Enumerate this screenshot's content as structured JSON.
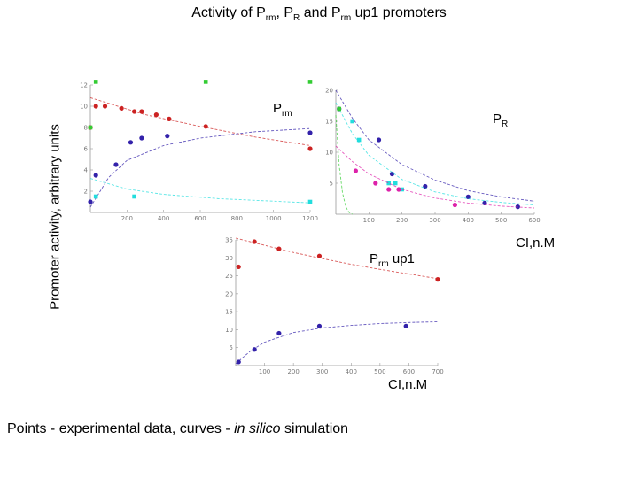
{
  "title": {
    "part1": "Activity of P",
    "sub1": "rm",
    "part2": ", P",
    "sub2": "R",
    "part3": " and P",
    "sub3": "rm",
    "part4": " up1 promoters"
  },
  "ylabel": "Promoter activity, arbitrary units",
  "panel_labels": {
    "prm": {
      "p": "P",
      "sub": "rm"
    },
    "pr": {
      "p": "P",
      "sub": "R"
    },
    "prmup1": {
      "p": "P",
      "sub": "rm",
      "suffix": " up1"
    }
  },
  "xunit_right": "CI,n.M",
  "xunit_bottom": "CI,n.M",
  "footer": {
    "part1": "Points -  experimental data, curves - ",
    "italic": "in silico",
    "part2": " simulation"
  },
  "colors": {
    "red": "#cc2222",
    "blue": "#3322aa",
    "cyan": "#22dddd",
    "magenta": "#dd22aa",
    "green": "#33cc33",
    "purple": "#8833aa"
  },
  "chart_data": [
    {
      "type": "scatter",
      "title": "Prm",
      "xlim": [
        0,
        1200
      ],
      "ylim": [
        0,
        12
      ],
      "x_ticks": [
        "200",
        "400",
        "600",
        "800",
        "1000",
        "1200"
      ],
      "y_ticks": [
        "2",
        "4",
        "6",
        "8",
        "10",
        "12"
      ],
      "series": [
        {
          "name": "red",
          "color": "#cc2222",
          "x": [
            0,
            30,
            80,
            170,
            240,
            280,
            360,
            430,
            630,
            1200
          ],
          "y": [
            8,
            10,
            10,
            9.8,
            9.5,
            9.5,
            9.2,
            8.8,
            8.1,
            6
          ],
          "curve_x": [
            0,
            300,
            600,
            900,
            1200
          ],
          "curve_y": [
            10.8,
            9.2,
            8.1,
            7.1,
            6.3
          ]
        },
        {
          "name": "blue",
          "color": "#3322aa",
          "x": [
            0,
            30,
            140,
            220,
            280,
            420,
            1200
          ],
          "y": [
            1,
            3.5,
            4.5,
            6.6,
            7,
            7.2,
            7.5
          ],
          "curve_x": [
            0,
            100,
            200,
            400,
            600,
            900,
            1200
          ],
          "curve_y": [
            0.5,
            3.3,
            4.9,
            6.3,
            7,
            7.6,
            7.9
          ]
        },
        {
          "name": "cyan",
          "color": "#22dddd",
          "x": [
            30,
            240,
            1200
          ],
          "y": [
            1.5,
            1.5,
            1
          ],
          "curve_x": [
            0,
            200,
            400,
            700,
            1200
          ],
          "curve_y": [
            3.2,
            2.2,
            1.7,
            1.3,
            0.9
          ]
        },
        {
          "name": "green",
          "color": "#33cc33",
          "x": [
            0,
            30,
            630,
            1200
          ],
          "y": [
            8,
            12.3,
            12.3,
            12.3
          ]
        }
      ]
    },
    {
      "type": "scatter",
      "title": "PR",
      "xlim": [
        0,
        600
      ],
      "ylim": [
        0,
        20
      ],
      "x_ticks": [
        "100",
        "200",
        "300",
        "400",
        "500",
        "600"
      ],
      "y_ticks": [
        "5",
        "10",
        "15",
        "20"
      ],
      "series": [
        {
          "name": "blue",
          "color": "#3322aa",
          "x": [
            10,
            130,
            170,
            270,
            400,
            450,
            550
          ],
          "y": [
            17,
            12,
            6.5,
            4.5,
            2.8,
            1.8,
            1.2
          ],
          "curve_x": [
            0,
            50,
            100,
            200,
            300,
            400,
            500,
            600
          ],
          "curve_y": [
            20,
            15.5,
            12,
            8,
            5.5,
            3.8,
            2.8,
            2.1
          ]
        },
        {
          "name": "cyan",
          "color": "#22dddd",
          "x": [
            50,
            70,
            160,
            180,
            200
          ],
          "y": [
            15,
            12,
            5,
            5,
            4
          ],
          "curve_x": [
            0,
            50,
            100,
            200,
            300,
            400,
            500,
            600
          ],
          "curve_y": [
            18,
            13,
            9.5,
            5.6,
            3.6,
            2.5,
            1.9,
            1.5
          ]
        },
        {
          "name": "magenta",
          "color": "#dd22aa",
          "x": [
            60,
            120,
            160,
            190,
            360
          ],
          "y": [
            7,
            5,
            4,
            4,
            1.5
          ],
          "curve_x": [
            0,
            50,
            100,
            200,
            300,
            400,
            500,
            600
          ],
          "curve_y": [
            11,
            8.5,
            6.5,
            4,
            2.6,
            1.8,
            1.3,
            1
          ]
        },
        {
          "name": "green",
          "color": "#33cc33",
          "x": [
            10
          ],
          "y": [
            17
          ],
          "curve_x": [
            0,
            10,
            20,
            30,
            40,
            50
          ],
          "curve_y": [
            16,
            8,
            3.5,
            1.2,
            0.3,
            0
          ]
        }
      ]
    },
    {
      "type": "scatter",
      "title": "Prm up1",
      "xlim": [
        0,
        700
      ],
      "ylim": [
        0,
        35
      ],
      "x_ticks": [
        "100",
        "200",
        "300",
        "400",
        "500",
        "600",
        "700"
      ],
      "y_ticks": [
        "5",
        "10",
        "15",
        "20",
        "25",
        "30",
        "35"
      ],
      "series": [
        {
          "name": "red",
          "color": "#cc2222",
          "x": [
            10,
            65,
            150,
            290,
            700
          ],
          "y": [
            27.5,
            34.5,
            32.5,
            30.5,
            24
          ],
          "curve_x": [
            0,
            100,
            200,
            300,
            400,
            500,
            600,
            700
          ],
          "curve_y": [
            35.5,
            33.5,
            31.5,
            29.8,
            28.2,
            26.8,
            25.5,
            24.2
          ]
        },
        {
          "name": "blue",
          "color": "#3322aa",
          "x": [
            10,
            65,
            150,
            290,
            590
          ],
          "y": [
            1,
            4.5,
            9,
            11,
            11
          ],
          "curve_x": [
            0,
            50,
            100,
            200,
            300,
            400,
            500,
            600,
            700
          ],
          "curve_y": [
            0.5,
            4,
            6.5,
            9.2,
            10.5,
            11.2,
            11.7,
            12,
            12.2
          ]
        }
      ]
    }
  ]
}
